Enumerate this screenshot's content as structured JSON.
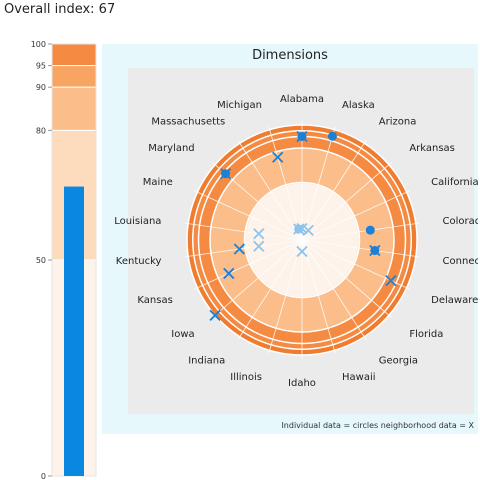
{
  "header": {
    "title": "Overall index: 67"
  },
  "gauge": {
    "value": 67,
    "ticks": [
      "100",
      "95",
      "90",
      "80",
      "50",
      "0"
    ],
    "bands": [
      {
        "from": 95,
        "to": 100,
        "color": "#f58a42"
      },
      {
        "from": 90,
        "to": 95,
        "color": "#f8a463"
      },
      {
        "from": 80,
        "to": 90,
        "color": "#fbbd89"
      },
      {
        "from": 50,
        "to": 80,
        "color": "#fddcbd"
      },
      {
        "from": 0,
        "to": 50,
        "color": "#fdf3ea"
      }
    ],
    "bar_color": "#0a87e0"
  },
  "dimensions": {
    "title": "Dimensions",
    "caption": "Individual data = circles   neighborhood data = X"
  },
  "chart_data": {
    "type": "scatter",
    "title": "Dimensions",
    "coordinate": "polar",
    "categories": [
      "Alabama",
      "Alaska",
      "Arizona",
      "Arkansas",
      "California",
      "Colorado",
      "Connecticut",
      "Delaware",
      "Florida",
      "Georgia",
      "Hawaii",
      "Idaho",
      "Illinois",
      "Indiana",
      "Iowa",
      "Kansas",
      "Kentucky",
      "Louisiana",
      "Maine",
      "Maryland",
      "Massachusetts",
      "Michigan"
    ],
    "rlim": [
      0,
      100
    ],
    "rings": [
      50,
      80,
      90,
      95,
      100
    ],
    "series": [
      {
        "name": "Individual data",
        "marker": "circle",
        "points": [
          {
            "category": "Alabama",
            "value": 90
          },
          {
            "category": "Alaska",
            "value": 94
          },
          {
            "category": "Colorado",
            "value": 60
          },
          {
            "category": "Connecticut",
            "value": 64
          },
          {
            "category": "Maryland",
            "value": 88
          },
          {
            "category": "Michigan",
            "value": 10
          }
        ]
      },
      {
        "name": "neighborhood data",
        "marker": "x",
        "points": [
          {
            "category": "Alabama",
            "value": 90
          },
          {
            "category": "Alabama",
            "value": 10
          },
          {
            "category": "Arizona",
            "value": 10
          },
          {
            "category": "Connecticut",
            "value": 64
          },
          {
            "category": "Delaware",
            "value": 85
          },
          {
            "category": "Iowa",
            "value": 100
          },
          {
            "category": "Kansas",
            "value": 70
          },
          {
            "category": "Kentucky",
            "value": 55
          },
          {
            "category": "Kentucky",
            "value": 38
          },
          {
            "category": "Louisiana",
            "value": 38
          },
          {
            "category": "Maryland",
            "value": 88
          },
          {
            "category": "Michigan",
            "value": 75
          },
          {
            "category": "Michigan",
            "value": 10
          },
          {
            "category": "Idaho",
            "value": 10
          }
        ]
      }
    ],
    "colors": {
      "outer_ring": "#f07d2f",
      "ring_2": "#f58a42",
      "ring_3": "#fbbd89",
      "inner": "#fddcbd",
      "center": "#fdf3ea",
      "marker_strong": "#1a80d8",
      "marker_light": "#8cc4ee",
      "panel_bg": "#e6f8fc",
      "plot_bg": "#ebebeb"
    }
  }
}
